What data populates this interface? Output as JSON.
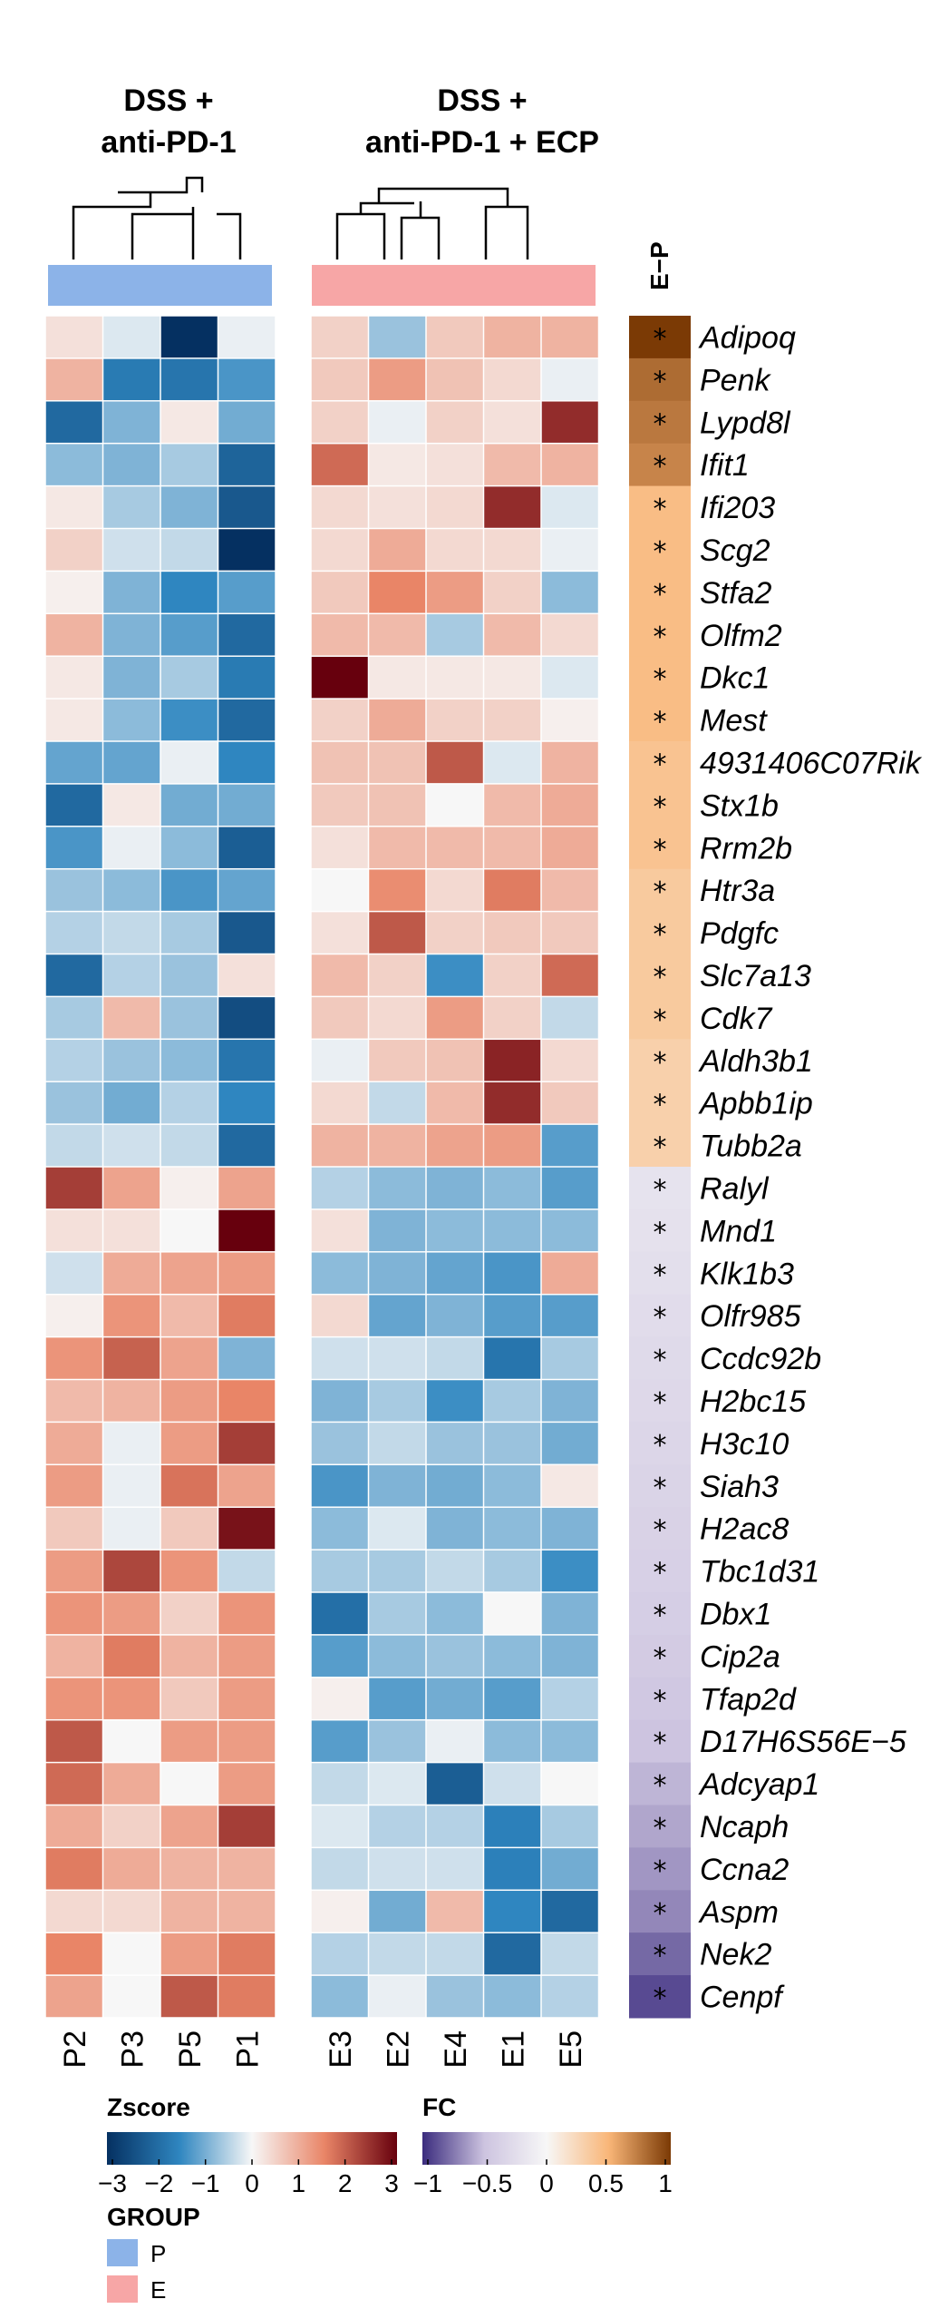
{
  "chart_data": {
    "type": "heatmap",
    "group_titles": [
      {
        "line1": "DSS +",
        "line2": "anti-PD-1"
      },
      {
        "line1": "DSS +",
        "line2": "anti-PD-1 + ECP"
      }
    ],
    "annotation_label": "E−P",
    "groups": {
      "P": {
        "label": "P",
        "color": "#8cb3e8"
      },
      "E": {
        "label": "E",
        "color": "#f7a6a6"
      }
    },
    "columns": [
      {
        "name": "P2",
        "group": "P"
      },
      {
        "name": "P3",
        "group": "P"
      },
      {
        "name": "P5",
        "group": "P"
      },
      {
        "name": "P1",
        "group": "P"
      },
      {
        "name": "E3",
        "group": "E"
      },
      {
        "name": "E2",
        "group": "E"
      },
      {
        "name": "E4",
        "group": "E"
      },
      {
        "name": "E1",
        "group": "E"
      },
      {
        "name": "E5",
        "group": "E"
      }
    ],
    "genes": [
      "Adipoq",
      "Penk",
      "Lypd8l",
      "Ifit1",
      "Ifi203",
      "Scg2",
      "Stfa2",
      "Olfm2",
      "Dkc1",
      "Mest",
      "4931406C07Rik",
      "Stx1b",
      "Rrm2b",
      "Htr3a",
      "Pdgfc",
      "Slc7a13",
      "Cdk7",
      "Aldh3b1",
      "Apbb1ip",
      "Tubb2a",
      "Ralyl",
      "Mnd1",
      "Klk1b3",
      "Olfr985",
      "Ccdc92b",
      "H2bc15",
      "H3c10",
      "Siah3",
      "H2ac8",
      "Tbc1d31",
      "Dbx1",
      "Cip2a",
      "Tfap2d",
      "D17H6S56E−5",
      "Adcyap1",
      "Ncaph",
      "Ccna2",
      "Aspm",
      "Nek2",
      "Cenpf"
    ],
    "zscore": [
      [
        0.3,
        -0.2,
        -3.0,
        -0.1,
        0.5,
        -0.7,
        0.6,
        0.9,
        0.9
      ],
      [
        0.9,
        -1.7,
        -1.8,
        -1.3,
        0.6,
        1.2,
        0.7,
        0.4,
        -0.1
      ],
      [
        -2.0,
        -0.9,
        0.2,
        -1.0,
        0.5,
        -0.1,
        0.5,
        0.3,
        2.5
      ],
      [
        -0.8,
        -0.9,
        -0.6,
        -2.1,
        1.8,
        0.2,
        0.3,
        0.8,
        0.9
      ],
      [
        0.2,
        -0.6,
        -0.9,
        -2.3,
        0.4,
        0.3,
        0.4,
        2.5,
        -0.2
      ],
      [
        0.5,
        -0.3,
        -0.4,
        -3.0,
        0.4,
        1.0,
        0.4,
        0.4,
        -0.1
      ],
      [
        0.1,
        -0.9,
        -1.5,
        -1.2,
        0.6,
        1.5,
        1.2,
        0.5,
        -0.8
      ],
      [
        0.9,
        -0.9,
        -1.2,
        -2.0,
        0.8,
        0.8,
        -0.6,
        0.8,
        0.4
      ],
      [
        0.2,
        -0.9,
        -0.6,
        -1.7,
        3.0,
        0.2,
        0.2,
        0.2,
        -0.2
      ],
      [
        0.2,
        -0.8,
        -1.4,
        -2.0,
        0.5,
        1.0,
        0.5,
        0.5,
        0.1
      ],
      [
        -1.1,
        -1.1,
        -0.1,
        -1.5,
        0.7,
        0.7,
        2.0,
        -0.2,
        0.9
      ],
      [
        -2.0,
        0.2,
        -1.0,
        -1.0,
        0.6,
        0.7,
        0.0,
        0.8,
        1.0
      ],
      [
        -1.3,
        -0.1,
        -0.8,
        -2.2,
        0.3,
        0.8,
        0.8,
        0.8,
        1.0
      ],
      [
        -0.7,
        -0.8,
        -1.3,
        -1.1,
        0.0,
        1.4,
        0.4,
        1.6,
        0.8
      ],
      [
        -0.5,
        -0.4,
        -0.6,
        -2.3,
        0.3,
        2.0,
        0.5,
        0.6,
        0.6
      ],
      [
        -2.0,
        -0.5,
        -0.7,
        0.3,
        0.8,
        0.5,
        -1.4,
        0.5,
        1.8
      ],
      [
        -0.6,
        0.8,
        -0.7,
        -2.5,
        0.6,
        0.4,
        1.2,
        0.5,
        -0.4
      ],
      [
        -0.5,
        -0.7,
        -0.8,
        -1.8,
        -0.1,
        0.6,
        0.7,
        2.6,
        0.4
      ],
      [
        -0.7,
        -1.0,
        -0.5,
        -1.5,
        0.4,
        -0.4,
        0.8,
        2.5,
        0.6
      ],
      [
        -0.4,
        -0.3,
        -0.4,
        -2.0,
        0.9,
        0.9,
        1.1,
        1.2,
        -1.2
      ],
      [
        2.3,
        1.1,
        0.1,
        1.1,
        -0.5,
        -0.8,
        -0.9,
        -0.8,
        -1.2
      ],
      [
        0.3,
        0.3,
        0.0,
        3.0,
        0.3,
        -0.9,
        -0.8,
        -0.8,
        -0.8
      ],
      [
        -0.3,
        1.0,
        1.1,
        1.2,
        -0.8,
        -0.9,
        -1.1,
        -1.3,
        1.0
      ],
      [
        0.1,
        1.3,
        0.8,
        1.6,
        0.4,
        -1.1,
        -0.9,
        -1.2,
        -1.2
      ],
      [
        1.3,
        1.9,
        1.1,
        -0.9,
        -0.3,
        -0.3,
        -0.4,
        -1.8,
        -0.6
      ],
      [
        0.8,
        0.9,
        1.2,
        1.5,
        -0.9,
        -0.6,
        -1.4,
        -0.6,
        -0.9
      ],
      [
        1.0,
        -0.1,
        1.2,
        2.3,
        -0.7,
        -0.4,
        -0.7,
        -0.7,
        -1.0
      ],
      [
        1.2,
        -0.1,
        1.7,
        1.1,
        -1.3,
        -0.9,
        -1.0,
        -0.8,
        0.2
      ],
      [
        0.6,
        -0.1,
        0.6,
        2.8,
        -0.8,
        -0.2,
        -0.9,
        -0.8,
        -0.9
      ],
      [
        1.2,
        2.2,
        1.3,
        -0.4,
        -0.6,
        -0.6,
        -0.4,
        -0.6,
        -1.4
      ],
      [
        1.3,
        1.2,
        0.5,
        1.3,
        -1.9,
        -0.6,
        -0.8,
        0.0,
        -0.9
      ],
      [
        0.9,
        1.6,
        0.9,
        1.2,
        -1.2,
        -0.8,
        -0.7,
        -0.8,
        -0.9
      ],
      [
        1.3,
        1.3,
        0.6,
        1.2,
        0.1,
        -1.2,
        -1.0,
        -1.2,
        -0.5
      ],
      [
        2.0,
        0.0,
        1.2,
        1.2,
        -1.2,
        -0.7,
        -0.1,
        -0.8,
        -0.8
      ],
      [
        1.8,
        1.0,
        0.0,
        1.2,
        -0.4,
        -0.2,
        -2.2,
        -0.3,
        0.0
      ],
      [
        1.0,
        0.5,
        1.1,
        2.3,
        -0.2,
        -0.5,
        -0.5,
        -1.6,
        -0.6
      ],
      [
        1.6,
        1.0,
        0.9,
        0.9,
        -0.4,
        -0.3,
        -0.3,
        -1.6,
        -1.0
      ],
      [
        0.4,
        0.4,
        0.9,
        0.9,
        0.1,
        -1.0,
        0.8,
        -1.5,
        -2.0
      ],
      [
        1.5,
        0.0,
        1.2,
        1.6,
        -0.5,
        -0.4,
        -0.4,
        -2.0,
        -0.4
      ],
      [
        1.1,
        0.0,
        2.0,
        1.6,
        -0.8,
        -0.1,
        -0.7,
        -0.8,
        -0.5
      ]
    ],
    "fc": [
      1.0,
      0.8,
      0.75,
      0.7,
      0.45,
      0.45,
      0.45,
      0.45,
      0.45,
      0.45,
      0.4,
      0.4,
      0.4,
      0.35,
      0.35,
      0.35,
      0.35,
      0.3,
      0.3,
      0.3,
      -0.2,
      -0.22,
      -0.24,
      -0.26,
      -0.28,
      -0.3,
      -0.32,
      -0.34,
      -0.36,
      -0.38,
      -0.4,
      -0.43,
      -0.46,
      -0.5,
      -0.55,
      -0.6,
      -0.65,
      -0.7,
      -0.8,
      -0.9
    ],
    "significance_mark": "*",
    "zscore_legend": {
      "title": "Zscore",
      "range": [
        -3,
        3
      ],
      "ticks": [
        "−3",
        "−2",
        "−1",
        "0",
        "1",
        "2",
        "3"
      ]
    },
    "fc_legend": {
      "title": "FC",
      "range": [
        -1,
        1
      ],
      "ticks": [
        "−1",
        "−0.5",
        "0",
        "0.5",
        "1"
      ]
    },
    "group_legend_title": "GROUP",
    "colors": {
      "z_low": "#053061",
      "z_low_mid": "#2f86c0",
      "z_mid": "#f7f7f7",
      "z_high_mid": "#e98567",
      "z_high": "#67000d",
      "fc_low": "#3b2c7e",
      "fc_low_mid": "#cdc4e0",
      "fc_mid": "#f7f7f7",
      "fc_high_mid": "#f9b678",
      "fc_high": "#7b3a05"
    }
  }
}
